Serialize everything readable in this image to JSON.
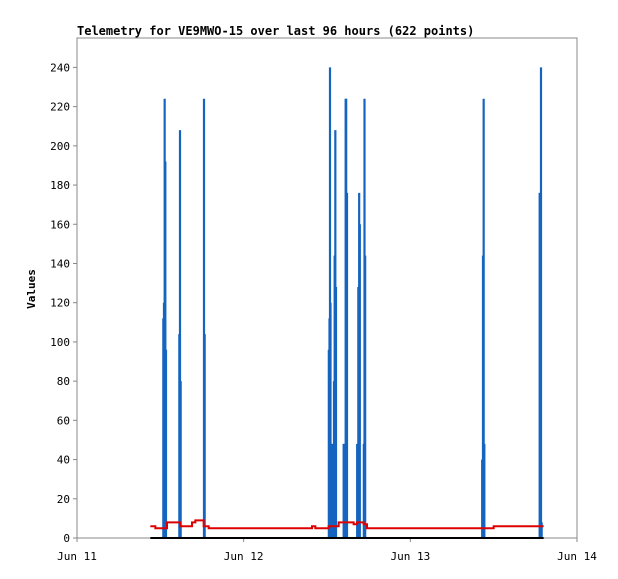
{
  "chart_data": {
    "type": "line",
    "title": "Telemetry for VE9MWO-15 over last 96 hours (622 points)",
    "xlabel": "",
    "ylabel": "Values",
    "x_tick_labels": [
      "Jun 11",
      "Jun 12",
      "Jun 13",
      "Jun 14"
    ],
    "x_unit": "days since Jun 11 00:00",
    "xlim": [
      0,
      3
    ],
    "ylim": [
      0,
      255
    ],
    "y_ticks": [
      0,
      20,
      40,
      60,
      80,
      100,
      120,
      140,
      160,
      180,
      200,
      220,
      240
    ],
    "grid": false,
    "legend": "none",
    "colors": {
      "spikes": "#1565c0",
      "voltage": "#dd0000",
      "baseline": "#000000"
    },
    "series": [
      {
        "type": "spikes",
        "values": [
          [
            0.518,
            112
          ],
          [
            0.522,
            120
          ],
          [
            0.526,
            224
          ],
          [
            0.53,
            192
          ],
          [
            0.534,
            96
          ],
          [
            0.614,
            104
          ],
          [
            0.618,
            208
          ],
          [
            0.622,
            80
          ],
          [
            0.762,
            224
          ],
          [
            0.766,
            104
          ],
          [
            1.511,
            96
          ],
          [
            1.515,
            112
          ],
          [
            1.518,
            240
          ],
          [
            1.521,
            120
          ],
          [
            1.525,
            48
          ],
          [
            1.528,
            32
          ],
          [
            1.531,
            48
          ],
          [
            1.542,
            80
          ],
          [
            1.546,
            144
          ],
          [
            1.55,
            208
          ],
          [
            1.554,
            128
          ],
          [
            1.6,
            48
          ],
          [
            1.604,
            48
          ],
          [
            1.612,
            224
          ],
          [
            1.615,
            224
          ],
          [
            1.62,
            176
          ],
          [
            1.681,
            48
          ],
          [
            1.688,
            128
          ],
          [
            1.693,
            176
          ],
          [
            1.697,
            160
          ],
          [
            1.721,
            48
          ],
          [
            1.725,
            224
          ],
          [
            1.729,
            144
          ],
          [
            2.431,
            40
          ],
          [
            2.436,
            144
          ],
          [
            2.44,
            224
          ],
          [
            2.444,
            48
          ],
          [
            2.776,
            176
          ],
          [
            2.78,
            176
          ],
          [
            2.784,
            240
          ],
          [
            2.788,
            8
          ]
        ]
      },
      {
        "type": "step",
        "values": [
          [
            0.44,
            6
          ],
          [
            0.47,
            5
          ],
          [
            0.53,
            5
          ],
          [
            0.54,
            8
          ],
          [
            0.61,
            8
          ],
          [
            0.62,
            6
          ],
          [
            0.68,
            6
          ],
          [
            0.69,
            8
          ],
          [
            0.71,
            9
          ],
          [
            0.75,
            9
          ],
          [
            0.76,
            6
          ],
          [
            0.79,
            5
          ],
          [
            1.4,
            5
          ],
          [
            1.41,
            6
          ],
          [
            1.43,
            5
          ],
          [
            1.5,
            5
          ],
          [
            1.51,
            6
          ],
          [
            1.57,
            8
          ],
          [
            1.64,
            8
          ],
          [
            1.66,
            7
          ],
          [
            1.68,
            8
          ],
          [
            1.72,
            7
          ],
          [
            1.74,
            5
          ],
          [
            2.4,
            5
          ],
          [
            2.49,
            5
          ],
          [
            2.5,
            6
          ],
          [
            2.66,
            6
          ],
          [
            2.67,
            6
          ],
          [
            2.72,
            6
          ],
          [
            2.73,
            6
          ],
          [
            2.8,
            6
          ]
        ]
      },
      {
        "type": "line",
        "values": [
          [
            0.44,
            0
          ],
          [
            2.8,
            0
          ]
        ]
      }
    ]
  }
}
